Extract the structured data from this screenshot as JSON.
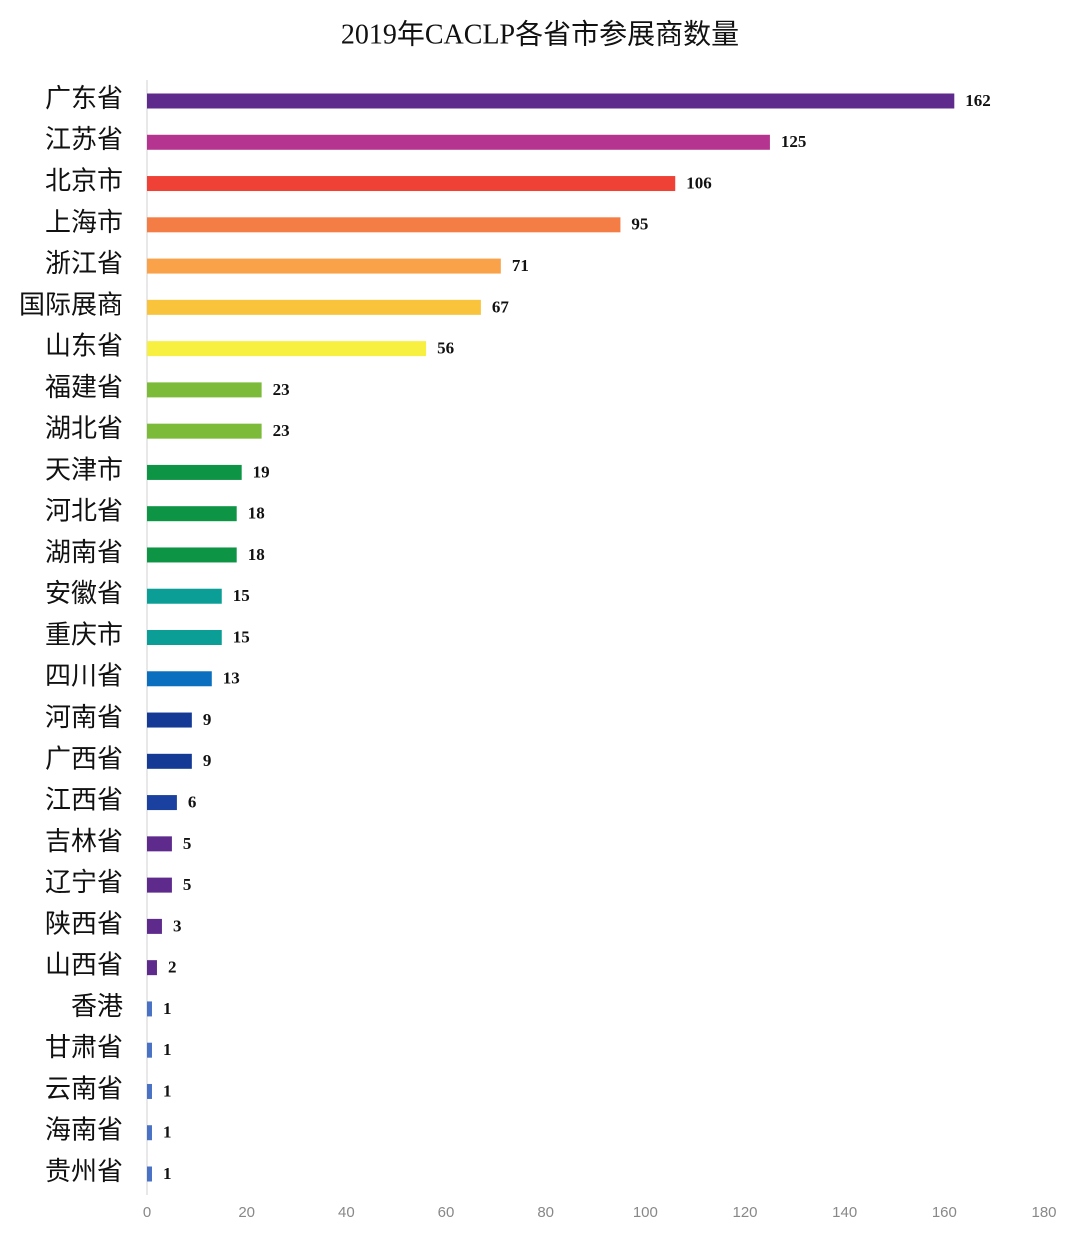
{
  "chart_data": {
    "type": "bar",
    "orientation": "horizontal",
    "title": "2019年CACLP各省市参展商数量",
    "categories": [
      "广东省",
      "江苏省",
      "北京市",
      "上海市",
      "浙江省",
      "国际展商",
      "山东省",
      "福建省",
      "湖北省",
      "天津市",
      "河北省",
      "湖南省",
      "安徽省",
      "重庆市",
      "四川省",
      "河南省",
      "广西省",
      "江西省",
      "吉林省",
      "辽宁省",
      "陕西省",
      "山西省",
      "香港",
      "甘肃省",
      "云南省",
      "海南省",
      "贵州省"
    ],
    "values": [
      162,
      125,
      106,
      95,
      71,
      67,
      56,
      23,
      23,
      19,
      18,
      18,
      15,
      15,
      13,
      9,
      9,
      6,
      5,
      5,
      3,
      2,
      1,
      1,
      1,
      1,
      1
    ],
    "colors": [
      "#5e2a8c",
      "#b5348f",
      "#ef4136",
      "#f47d45",
      "#f9a24a",
      "#f9c33c",
      "#f8f040",
      "#7cbb3a",
      "#7cbb3a",
      "#0d9444",
      "#0d9444",
      "#0d9444",
      "#0a9e96",
      "#0a9e96",
      "#0a6fbf",
      "#153a96",
      "#153a96",
      "#1a40a0",
      "#5e2a8c",
      "#5e2a8c",
      "#5e2a8c",
      "#5e2a8c",
      "#4a72c4",
      "#4a72c4",
      "#4a72c4",
      "#4a72c4",
      "#4a72c4"
    ],
    "xlim": [
      0,
      180
    ],
    "xticks": [
      0,
      20,
      40,
      60,
      80,
      100,
      120,
      140,
      160,
      180
    ],
    "grid": false
  }
}
